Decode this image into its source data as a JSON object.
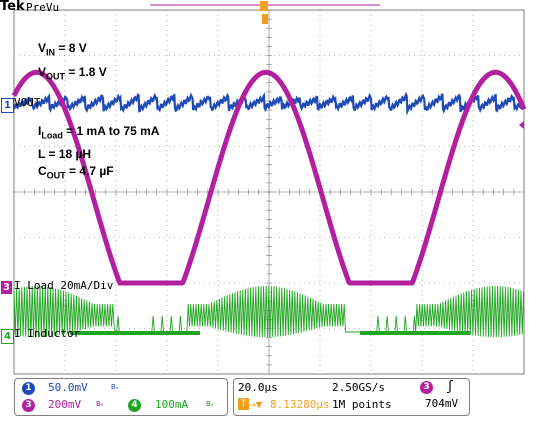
{
  "header": {
    "brand": "Tek",
    "mode": "PreVu"
  },
  "annotations": [
    {
      "main": "V",
      "sub": "IN",
      "rest": " = 8 V"
    },
    {
      "main": "V",
      "sub": "OUT",
      "rest": " = 1.8 V"
    },
    {
      "main": "I",
      "sub": "Load",
      "rest": " = 1 mA to 75 mA"
    },
    {
      "main": "L = 18 ",
      "sub": "",
      "rest": "µH"
    },
    {
      "main": "C",
      "sub": "OUT",
      "rest": " = 4.7 µF"
    }
  ],
  "channels": [
    {
      "number": "1",
      "label": "VOUT",
      "color": "#1f4bb8"
    },
    {
      "number": "3",
      "label": "I Load 20mA/Div",
      "color": "#b3209f"
    },
    {
      "number": "4",
      "label": "I Inductor",
      "color": "#1fa51f"
    }
  ],
  "status": {
    "ch1_scale": "50.0mV",
    "ch3_scale": "200mV",
    "ch4_scale": "100mA",
    "bw_glyph": "Bᵥ",
    "timebase": "20.0µs",
    "sample_rate": "2.50GS/s",
    "trigger_position": "8.13280µs",
    "record_length": "1M points",
    "trigger_level": "704mV",
    "trigger_slope": "ʃ",
    "trigger_marker": "T",
    "trigger_arrow": "→▼"
  },
  "colors": {
    "ch1": "#1f4bb8",
    "ch3": "#b3209f",
    "ch4": "#1fa51f",
    "trigger": "#f0a020",
    "grid": "#7f7f7f"
  },
  "chart_data": {
    "type": "line",
    "grid": true,
    "x_divisions": 10,
    "y_divisions": 8,
    "series": [
      {
        "name": "VOUT",
        "channel": 1,
        "waveform": "ripple",
        "period_div": 0.35
      },
      {
        "name": "I Load 20mA/Div",
        "channel": 3,
        "waveform": "sine",
        "period_div": 4.5,
        "peak_div": 3.05,
        "trough_div": -3.05
      },
      {
        "name": "I Inductor",
        "channel": 4,
        "waveform": "switching"
      }
    ]
  }
}
